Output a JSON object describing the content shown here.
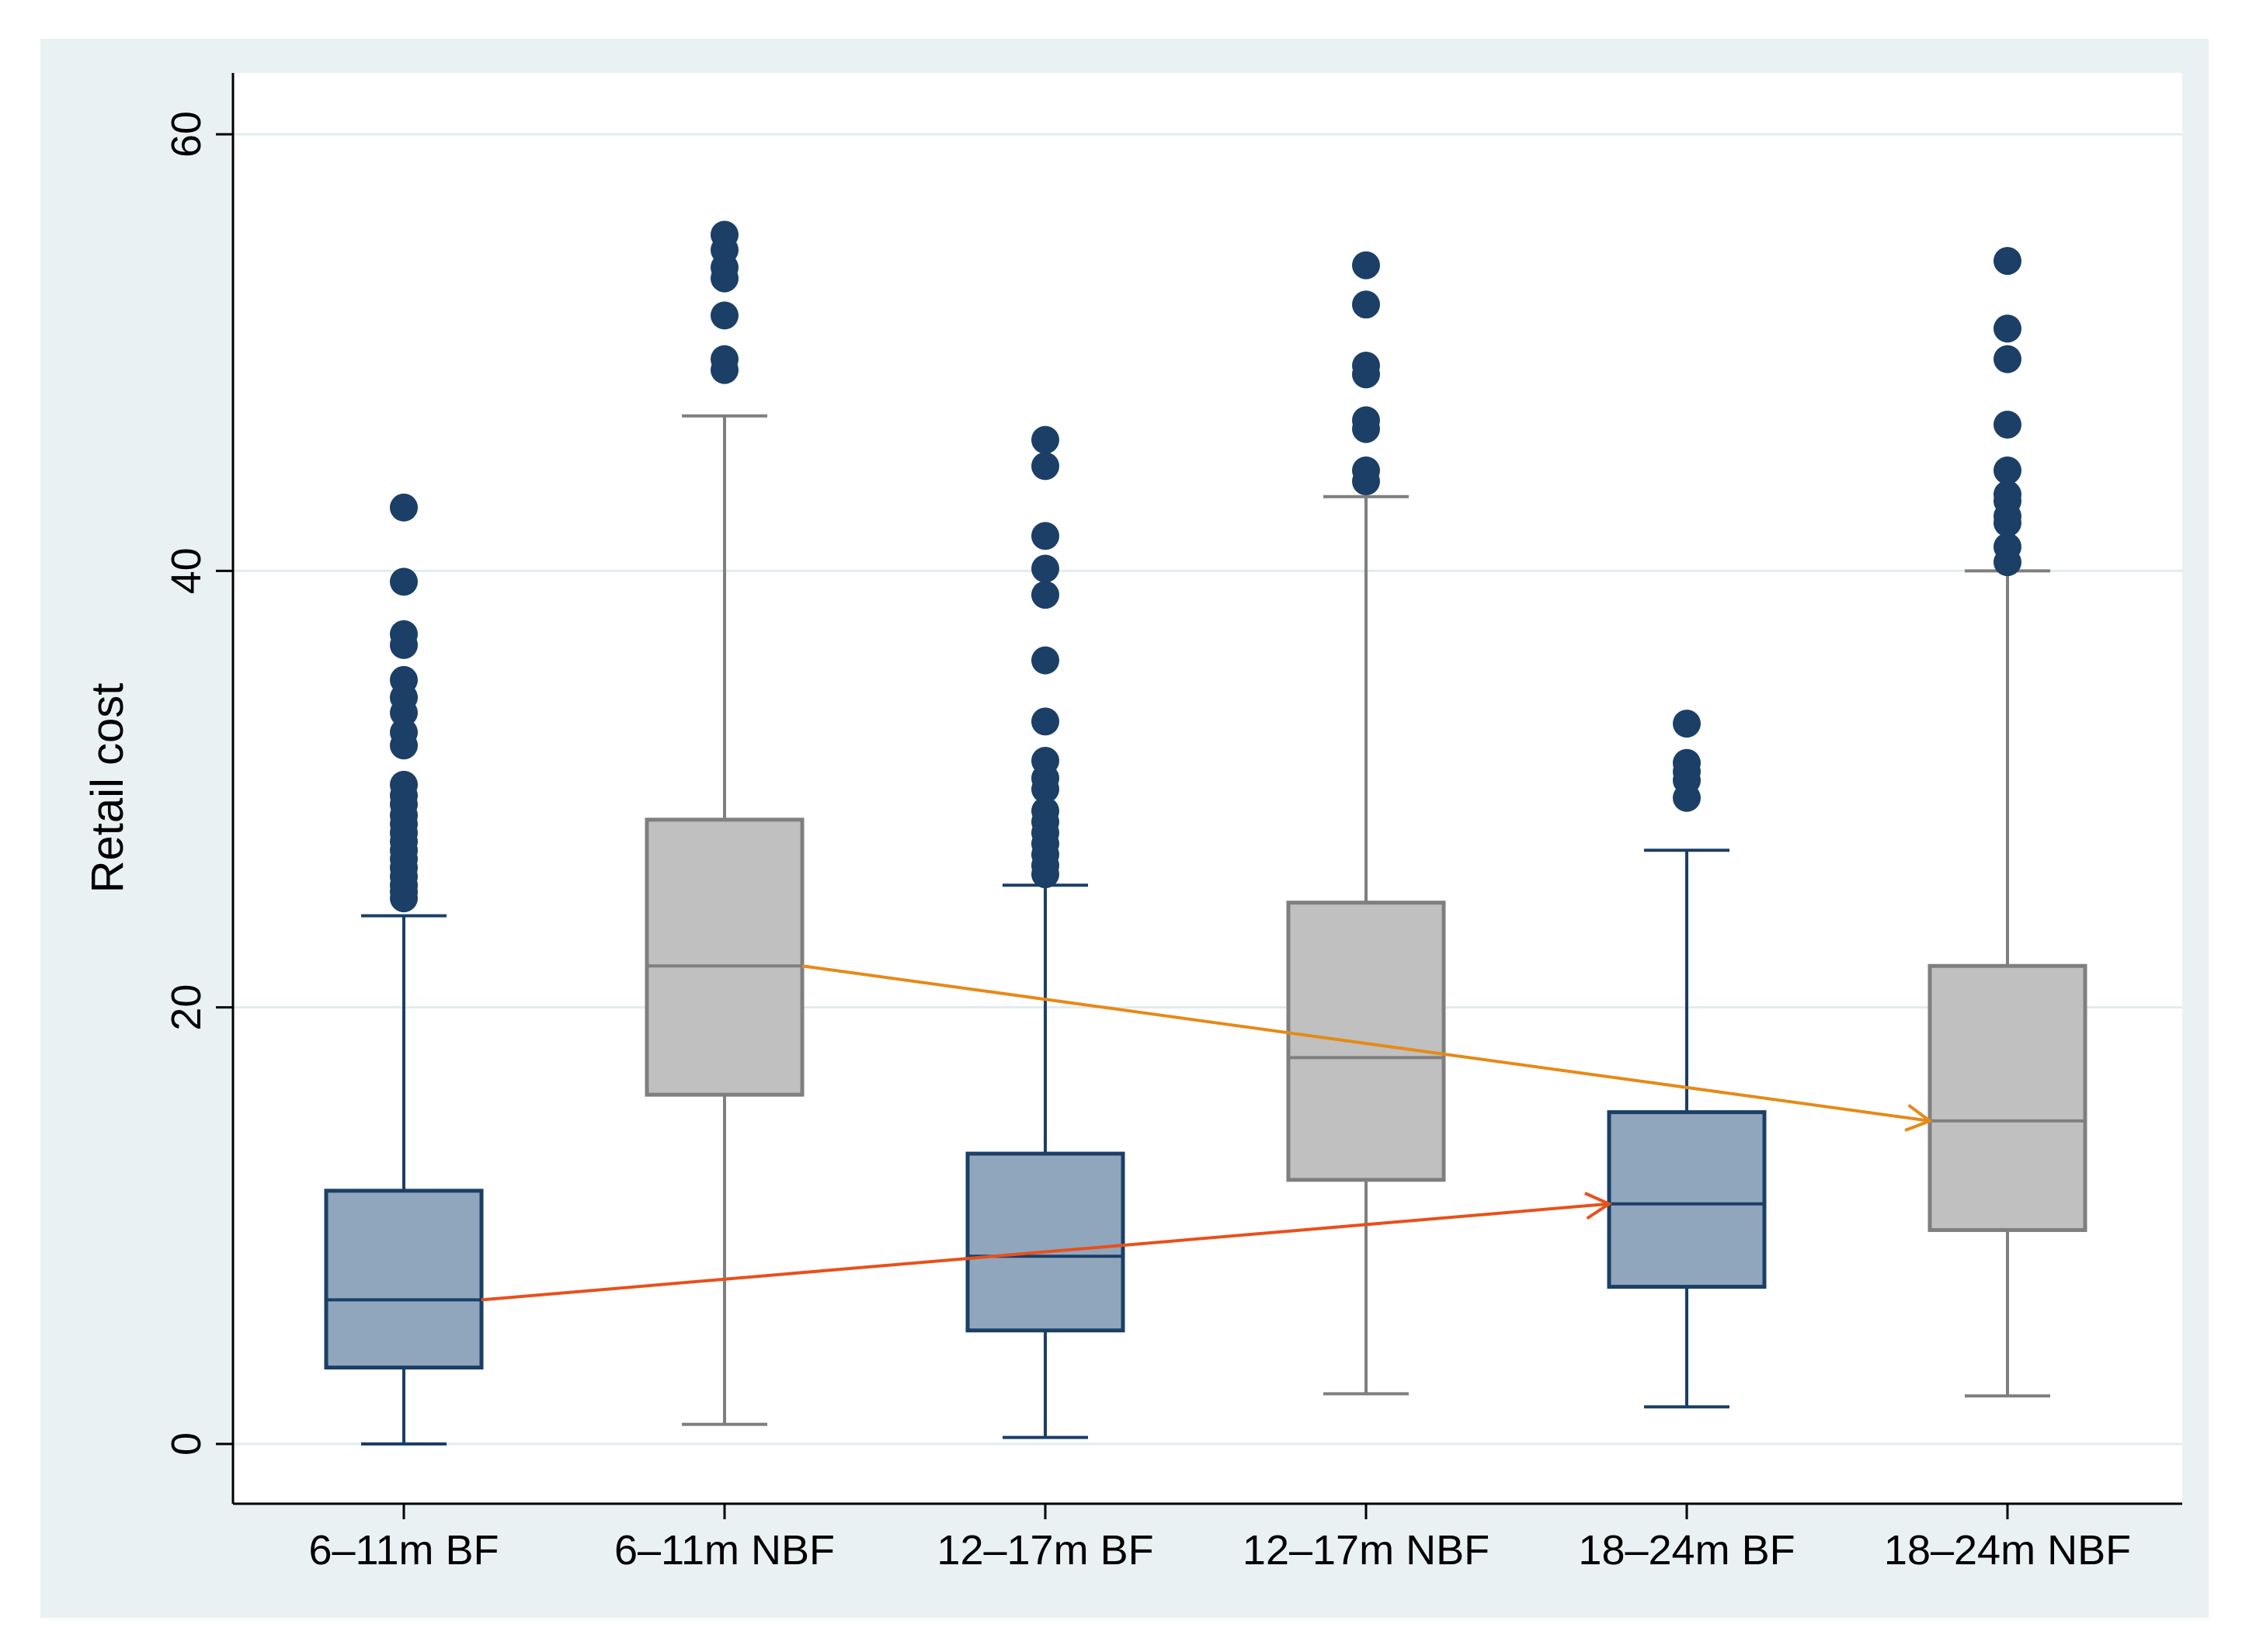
{
  "chart_data": {
    "type": "box",
    "ylabel": "Retail cost",
    "xlabel": "",
    "ylim": [
      -2.6,
      62.6
    ],
    "yticks": [
      0,
      20,
      40,
      60
    ],
    "grid": true,
    "categories": [
      "6–11m BF",
      "6–11m NBF",
      "12–17m BF",
      "12–17m NBF",
      "18–24m BF",
      "18–24m NBF"
    ],
    "colors": {
      "outer_background": "#eaf1f3",
      "plot_background": "#ffffff",
      "grid": "#e2ebee",
      "bf_fill": "#90a6bc",
      "bf_stroke": "#1b3f66",
      "nbf_fill": "#c0c0c0",
      "nbf_stroke": "#7f7f7f",
      "outlier": "#1b3f66",
      "bf_trend": "#e8501c",
      "nbf_trend": "#e58a18"
    },
    "boxes": [
      {
        "label": "6–11m BF",
        "group": "bf",
        "min": 0.0,
        "q1": 3.5,
        "median": 6.6,
        "q3": 11.6,
        "max": 24.2,
        "outliers": [
          25.0,
          25.3,
          25.6,
          26.0,
          26.4,
          26.8,
          27.2,
          27.6,
          28.0,
          28.4,
          28.8,
          29.3,
          29.7,
          30.2,
          32.0,
          32.6,
          33.5,
          34.2,
          35.0,
          36.6,
          37.1,
          39.5,
          42.9
        ]
      },
      {
        "label": "6–11m NBF",
        "group": "nbf",
        "min": 0.9,
        "q1": 16.0,
        "median": 21.9,
        "q3": 28.6,
        "max": 47.1,
        "outliers": [
          49.2,
          49.7,
          51.7,
          53.4,
          53.9,
          54.7,
          55.4
        ]
      },
      {
        "label": "12–17m BF",
        "group": "bf",
        "min": 0.3,
        "q1": 5.2,
        "median": 8.6,
        "q3": 13.3,
        "max": 25.6,
        "outliers": [
          26.1,
          26.5,
          27.0,
          27.5,
          28.0,
          28.5,
          29.0,
          30.0,
          30.5,
          31.3,
          33.1,
          35.9,
          38.9,
          40.1,
          41.6,
          44.8,
          46.0
        ]
      },
      {
        "label": "12–17m NBF",
        "group": "nbf",
        "min": 2.3,
        "q1": 12.1,
        "median": 17.7,
        "q3": 24.8,
        "max": 43.4,
        "outliers": [
          44.1,
          44.6,
          46.5,
          46.9,
          49.0,
          49.4,
          52.2,
          54.0
        ]
      },
      {
        "label": "18–24m BF",
        "group": "bf",
        "min": 1.7,
        "q1": 7.2,
        "median": 11.0,
        "q3": 15.2,
        "max": 27.2,
        "outliers": [
          29.6,
          30.4,
          30.8,
          31.2,
          33.0
        ]
      },
      {
        "label": "18–24m NBF",
        "group": "nbf",
        "min": 2.2,
        "q1": 9.8,
        "median": 14.8,
        "q3": 21.9,
        "max": 40.0,
        "outliers": [
          40.4,
          41.1,
          42.2,
          42.5,
          43.2,
          43.5,
          44.6,
          46.7,
          49.7,
          51.1,
          54.2
        ]
      }
    ],
    "trend_arrows": [
      {
        "series": "bf",
        "from": {
          "category": "6–11m BF",
          "value": 6.6
        },
        "to": {
          "category": "18–24m BF",
          "value": 11.0
        }
      },
      {
        "series": "nbf",
        "from": {
          "category": "6–11m NBF",
          "value": 21.9
        },
        "to": {
          "category": "18–24m NBF",
          "value": 14.8
        }
      }
    ]
  }
}
